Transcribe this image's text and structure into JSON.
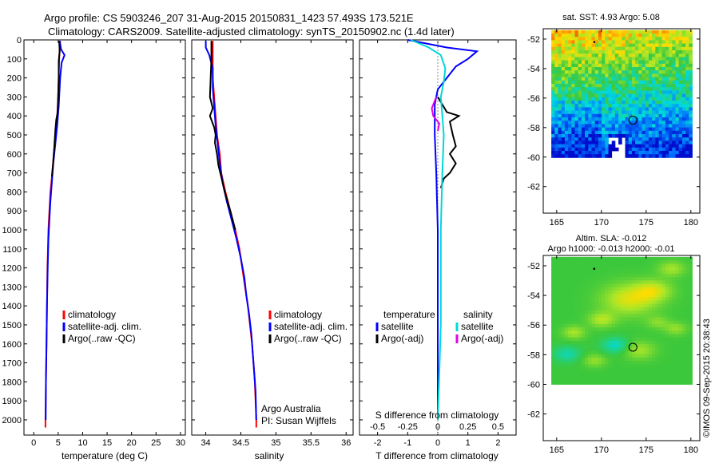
{
  "header": {
    "line1": "Argo profile: CS 5903246_207 31-Aug-2015 20150831_1423 57.493S 173.521E",
    "line2": "Climatology: CARS2009. Satellite-adjusted climatology: synTS_20150902.nc (1.4d later)"
  },
  "credit": "©IMOS 09-Sep-2015 20:38:43",
  "chart_data": [
    {
      "type": "line",
      "panel": "temperature",
      "xlabel": "temperature (deg C)",
      "ylabel": "",
      "xlim": [
        -2,
        31
      ],
      "ylim": [
        2080,
        0
      ],
      "xticks": [
        0,
        5,
        10,
        15,
        20,
        25,
        30
      ],
      "yticks": [
        0,
        100,
        200,
        300,
        400,
        500,
        600,
        700,
        800,
        900,
        1000,
        1100,
        1200,
        1300,
        1400,
        1500,
        1600,
        1700,
        1800,
        1900,
        2000
      ],
      "legend": [
        "climatology",
        "satellite-adj. clim.",
        "Argo(..raw -QC)"
      ],
      "series": [
        {
          "name": "climatology",
          "color": "#ff0000",
          "points": [
            [
              5.4,
              5
            ],
            [
              5.3,
              50
            ],
            [
              5.2,
              100
            ],
            [
              5.0,
              300
            ],
            [
              4.8,
              400
            ],
            [
              4.5,
              500
            ],
            [
              4.1,
              600
            ],
            [
              3.8,
              700
            ],
            [
              3.4,
              800
            ],
            [
              3.2,
              900
            ],
            [
              3.0,
              1000
            ],
            [
              2.9,
              1100
            ],
            [
              2.8,
              1200
            ],
            [
              2.7,
              1400
            ],
            [
              2.6,
              1600
            ],
            [
              2.5,
              1800
            ],
            [
              2.4,
              2000
            ],
            [
              2.4,
              2040
            ]
          ]
        },
        {
          "name": "satellite-adj. clim.",
          "color": "#0000ff",
          "points": [
            [
              5.3,
              5
            ],
            [
              5.6,
              50
            ],
            [
              6.3,
              80
            ],
            [
              5.7,
              120
            ],
            [
              5.4,
              200
            ],
            [
              5.1,
              350
            ],
            [
              4.8,
              450
            ],
            [
              4.4,
              550
            ],
            [
              4.0,
              650
            ],
            [
              3.7,
              750
            ],
            [
              3.4,
              850
            ],
            [
              3.2,
              950
            ],
            [
              3.0,
              1050
            ],
            [
              2.85,
              1200
            ],
            [
              2.7,
              1400
            ],
            [
              2.6,
              1600
            ],
            [
              2.5,
              1800
            ],
            [
              2.45,
              2000
            ]
          ]
        },
        {
          "name": "Argo(..raw -QC)",
          "color": "#000000",
          "points": [
            [
              5.2,
              5
            ],
            [
              5.3,
              60
            ],
            [
              5.1,
              110
            ],
            [
              5.1,
              200
            ],
            [
              5.0,
              300
            ],
            [
              4.9,
              380
            ],
            [
              4.6,
              420
            ],
            [
              4.4,
              480
            ],
            [
              4.2,
              560
            ],
            [
              4.0,
              640
            ],
            [
              3.7,
              720
            ]
          ]
        }
      ]
    },
    {
      "type": "line",
      "panel": "salinity",
      "xlabel": "salinity",
      "xlim": [
        33.8,
        36.1
      ],
      "ylim": [
        2080,
        0
      ],
      "xticks": [
        34,
        34.5,
        35,
        35.5,
        36
      ],
      "legend": [
        "climatology",
        "satellite-adj. clim.",
        "Argo(..raw -QC)"
      ],
      "annotation": [
        "Argo Australia",
        "PI: Susan Wijffels"
      ],
      "series": [
        {
          "name": "climatology",
          "color": "#ff0000",
          "points": [
            [
              34.1,
              5
            ],
            [
              34.1,
              100
            ],
            [
              34.1,
              200
            ],
            [
              34.12,
              300
            ],
            [
              34.14,
              400
            ],
            [
              34.16,
              500
            ],
            [
              34.2,
              600
            ],
            [
              34.22,
              700
            ],
            [
              34.28,
              800
            ],
            [
              34.35,
              900
            ],
            [
              34.42,
              1000
            ],
            [
              34.48,
              1100
            ],
            [
              34.52,
              1200
            ],
            [
              34.56,
              1300
            ],
            [
              34.6,
              1400
            ],
            [
              34.63,
              1500
            ],
            [
              34.66,
              1600
            ],
            [
              34.68,
              1700
            ],
            [
              34.7,
              1800
            ],
            [
              34.71,
              1900
            ],
            [
              34.72,
              2000
            ],
            [
              34.72,
              2040
            ]
          ]
        },
        {
          "name": "satellite-adj. clim.",
          "color": "#0000ff",
          "points": [
            [
              34.0,
              5
            ],
            [
              34.0,
              40
            ],
            [
              34.05,
              80
            ],
            [
              34.1,
              150
            ],
            [
              34.1,
              250
            ],
            [
              34.12,
              350
            ],
            [
              34.14,
              450
            ],
            [
              34.17,
              550
            ],
            [
              34.2,
              650
            ],
            [
              34.24,
              750
            ],
            [
              34.3,
              850
            ],
            [
              34.37,
              950
            ],
            [
              34.44,
              1050
            ],
            [
              34.5,
              1150
            ],
            [
              34.55,
              1250
            ],
            [
              34.58,
              1350
            ],
            [
              34.62,
              1450
            ],
            [
              34.65,
              1550
            ],
            [
              34.67,
              1650
            ],
            [
              34.69,
              1750
            ],
            [
              34.71,
              1850
            ],
            [
              34.72,
              2000
            ]
          ]
        },
        {
          "name": "Argo(..raw -QC)",
          "color": "#000000",
          "points": [
            [
              34.08,
              5
            ],
            [
              34.08,
              100
            ],
            [
              34.07,
              200
            ],
            [
              34.06,
              300
            ],
            [
              34.1,
              360
            ],
            [
              34.06,
              400
            ],
            [
              34.12,
              460
            ],
            [
              34.14,
              500
            ],
            [
              34.13,
              540
            ],
            [
              34.16,
              600
            ],
            [
              34.18,
              660
            ],
            [
              34.22,
              720
            ],
            [
              34.27,
              800
            ],
            [
              34.35,
              900
            ],
            [
              34.42,
              1000
            ]
          ]
        }
      ]
    },
    {
      "type": "line",
      "panel": "difference",
      "xlabel": "T difference from climatology",
      "xlabel_top": "S difference from climatology",
      "xlim": [
        -2.6,
        2.6
      ],
      "ylim": [
        2080,
        0
      ],
      "xticks": [
        -2,
        -1,
        0,
        1,
        2
      ],
      "xticks_s": [
        "-0.5",
        "-0.25",
        "0",
        "0.25",
        "0.5"
      ],
      "legend": [
        [
          "temperature",
          "satellite",
          "Argo(-adj)"
        ],
        [
          "salinity",
          "satellite",
          "Argo(-adj)"
        ]
      ],
      "series": [
        {
          "name": "temperature satellite",
          "color": "#0000ff",
          "points": [
            [
              -1.0,
              0
            ],
            [
              0.3,
              40
            ],
            [
              1.3,
              60
            ],
            [
              1.0,
              100
            ],
            [
              0.6,
              140
            ],
            [
              0.3,
              200
            ],
            [
              0.0,
              260
            ],
            [
              -0.1,
              340
            ],
            [
              -0.1,
              500
            ],
            [
              -0.05,
              700
            ],
            [
              0.0,
              1000
            ],
            [
              0.0,
              1500
            ],
            [
              0.0,
              2000
            ]
          ]
        },
        {
          "name": "temperature Argo(-adj)",
          "color": "#000000",
          "points": [
            [
              0.0,
              300
            ],
            [
              0.3,
              380
            ],
            [
              0.7,
              400
            ],
            [
              0.4,
              430
            ],
            [
              0.5,
              500
            ],
            [
              0.6,
              560
            ],
            [
              0.4,
              600
            ],
            [
              0.6,
              650
            ],
            [
              0.4,
              700
            ],
            [
              0.2,
              730
            ],
            [
              0.1,
              780
            ]
          ]
        },
        {
          "name": "salinity satellite",
          "color": "#00d8d8",
          "points": [
            [
              -0.9,
              0
            ],
            [
              -0.3,
              40
            ],
            [
              0.1,
              80
            ],
            [
              0.25,
              150
            ],
            [
              0.2,
              220
            ],
            [
              0.1,
              300
            ],
            [
              0.15,
              400
            ],
            [
              0.2,
              500
            ],
            [
              0.15,
              700
            ],
            [
              0.1,
              1000
            ],
            [
              0.1,
              1500
            ],
            [
              0.0,
              2000
            ]
          ]
        },
        {
          "name": "salinity Argo(-adj)",
          "color": "#e600e6",
          "points": [
            [
              -0.05,
              300
            ],
            [
              -0.2,
              360
            ],
            [
              -0.15,
              400
            ],
            [
              0.05,
              440
            ],
            [
              0.0,
              480
            ]
          ]
        }
      ]
    }
  ],
  "maps": {
    "sst": {
      "title": "sat. SST: 4.93  Argo: 5.08",
      "yticks": [
        "-52",
        "-54",
        "-56",
        "-58",
        "-60",
        "-62"
      ],
      "xticks": [
        "165",
        "170",
        "175",
        "180"
      ],
      "argo_lon": 173.521,
      "argo_lat": -57.493
    },
    "sla": {
      "title_line1": "Altim. SLA: -0.012",
      "title_line2": "Argo h1000: -0.013  h2000: -0.01",
      "yticks": [
        "-52",
        "-54",
        "-56",
        "-58",
        "-60",
        "-62"
      ],
      "xticks": [
        "165",
        "170",
        "175",
        "180"
      ],
      "argo_lon": 173.521,
      "argo_lat": -57.493
    }
  }
}
